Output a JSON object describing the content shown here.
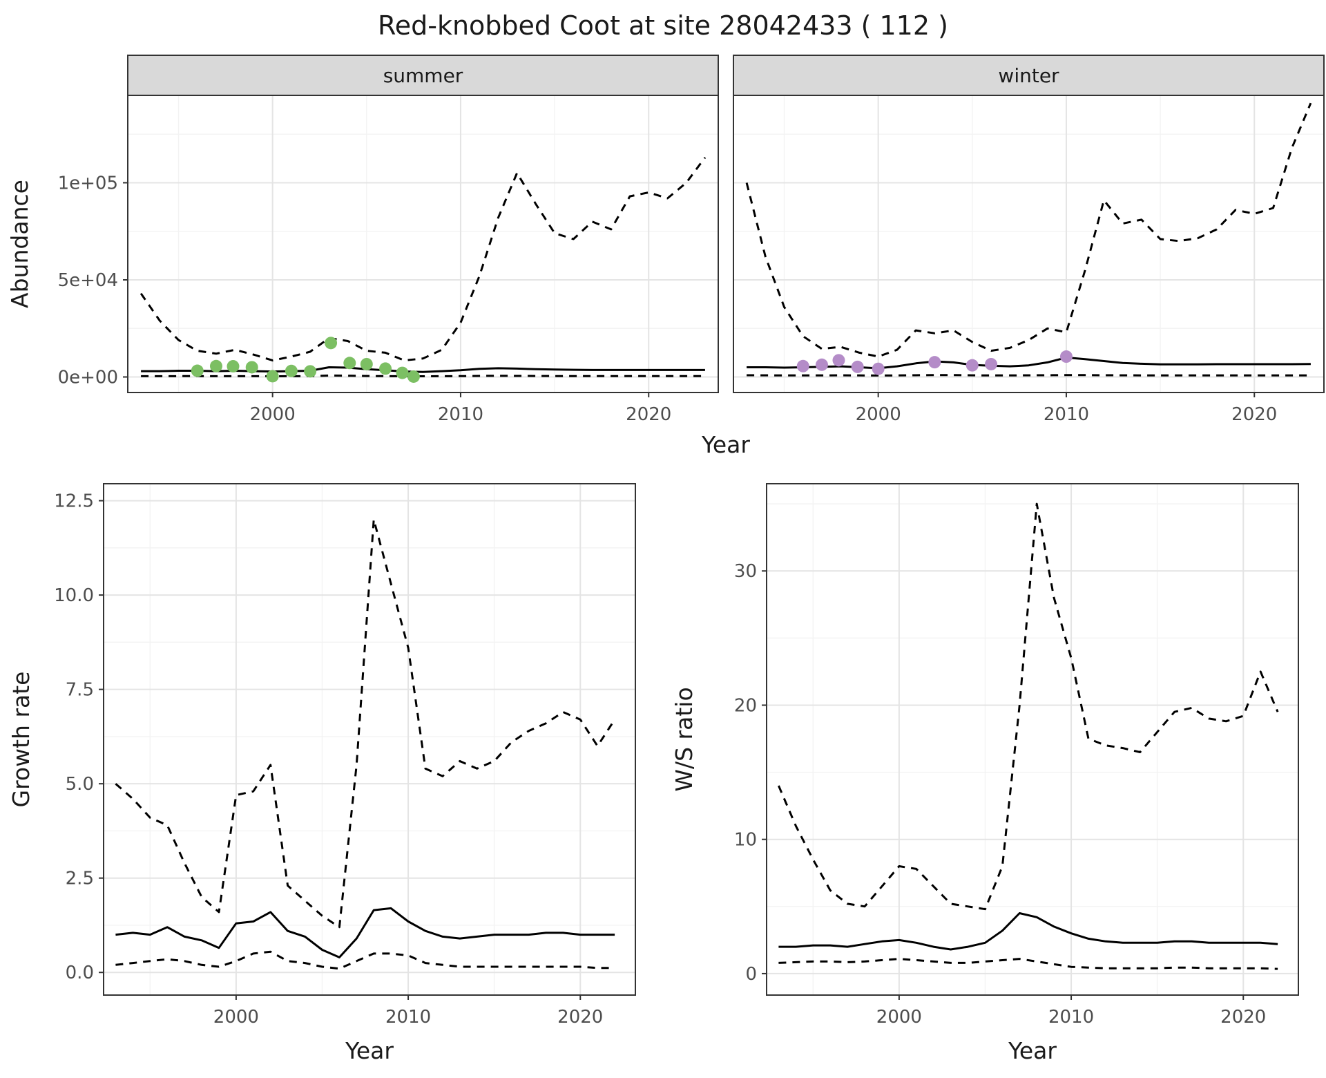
{
  "title": "Red-knobbed Coot at site 28042433 ( 112 )",
  "colors": {
    "summer_point": "#7CBF63",
    "winter_point": "#B48CC8",
    "line": "#000000",
    "grid_major": "#E4E4E4",
    "grid_minor": "#F3F3F3",
    "strip_bg": "#D9D9D9",
    "panel_border": "#333333",
    "tick_text": "#4D4D4D"
  },
  "chart_data": [
    {
      "id": "abundance-summer",
      "type": "line",
      "facet": "summer",
      "xlabel": "Year",
      "ylabel": "Abundance",
      "xlim": [
        1992.3,
        2023.7
      ],
      "ylim": [
        -8000,
        145000
      ],
      "xticks": [
        2000,
        2010,
        2020
      ],
      "yticks": [
        {
          "v": 0,
          "label": "0e+00"
        },
        {
          "v": 50000,
          "label": "5e+04"
        },
        {
          "v": 100000,
          "label": "1e+05"
        }
      ],
      "x": [
        1993,
        1994,
        1995,
        1996,
        1997,
        1998,
        1999,
        2000,
        2001,
        2002,
        2003,
        2004,
        2005,
        2006,
        2007,
        2008,
        2009,
        2010,
        2011,
        2012,
        2013,
        2014,
        2015,
        2016,
        2017,
        2018,
        2019,
        2020,
        2021,
        2022,
        2023
      ],
      "series": [
        {
          "name": "upper-ci",
          "style": "dashed",
          "values": [
            43000,
            29000,
            19000,
            13500,
            12000,
            14000,
            11500,
            8500,
            10500,
            13000,
            20000,
            18500,
            13500,
            12500,
            8500,
            9500,
            14000,
            28000,
            52000,
            82000,
            105000,
            89000,
            74000,
            71000,
            80000,
            76000,
            93000,
            95000,
            92000,
            100000,
            113000
          ]
        },
        {
          "name": "median",
          "style": "solid",
          "values": [
            3000,
            3000,
            3200,
            3200,
            3000,
            3200,
            3000,
            2800,
            3000,
            3200,
            5000,
            4800,
            4000,
            3500,
            2800,
            2600,
            3000,
            3500,
            4200,
            4500,
            4300,
            4000,
            3800,
            3700,
            3600,
            3600,
            3600,
            3600,
            3600,
            3600,
            3600
          ]
        },
        {
          "name": "lower-ci",
          "style": "dashed",
          "values": [
            400,
            400,
            450,
            450,
            400,
            450,
            400,
            350,
            400,
            450,
            700,
            650,
            500,
            450,
            350,
            350,
            400,
            450,
            550,
            600,
            550,
            500,
            480,
            470,
            460,
            460,
            460,
            460,
            460,
            460,
            460
          ]
        }
      ],
      "points": {
        "name": "observed-counts-summer",
        "color_key": "summer_point",
        "x": [
          1996,
          1997,
          1997.9,
          1998.9,
          2000,
          2001,
          2002,
          2003.1,
          2004.1,
          2005,
          2006,
          2006.9,
          2007.5
        ],
        "y": [
          3200,
          5600,
          5500,
          5000,
          400,
          3100,
          2900,
          17500,
          7200,
          6600,
          4300,
          2100,
          200
        ]
      }
    },
    {
      "id": "abundance-winter",
      "type": "line",
      "facet": "winter",
      "xlabel": "Year",
      "ylabel": "Abundance",
      "xlim": [
        1992.3,
        2023.7
      ],
      "ylim": [
        -8000,
        145000
      ],
      "xticks": [
        2000,
        2010,
        2020
      ],
      "yticks": [
        {
          "v": 0,
          "label": "0e+00"
        },
        {
          "v": 50000,
          "label": "5e+04"
        },
        {
          "v": 100000,
          "label": "1e+05"
        }
      ],
      "x": [
        1993,
        1994,
        1995,
        1996,
        1997,
        1998,
        1999,
        2000,
        2001,
        2002,
        2003,
        2004,
        2005,
        2006,
        2007,
        2008,
        2009,
        2010,
        2011,
        2012,
        2013,
        2014,
        2015,
        2016,
        2017,
        2018,
        2019,
        2020,
        2021,
        2022,
        2023
      ],
      "series": [
        {
          "name": "upper-ci",
          "style": "dashed",
          "values": [
            100000,
            62000,
            36000,
            21000,
            14500,
            15500,
            12500,
            10500,
            14000,
            24000,
            22500,
            24000,
            18000,
            13500,
            15000,
            19000,
            25000,
            23000,
            55000,
            91000,
            79000,
            81000,
            71000,
            70000,
            71500,
            76000,
            86000,
            84000,
            87000,
            118000,
            141000
          ]
        },
        {
          "name": "median",
          "style": "solid",
          "values": [
            5000,
            5000,
            4800,
            5000,
            5200,
            5500,
            5000,
            4500,
            5500,
            7000,
            8000,
            7500,
            6200,
            5800,
            5500,
            6000,
            7500,
            10000,
            9200,
            8200,
            7200,
            6800,
            6500,
            6500,
            6500,
            6600,
            6600,
            6600,
            6600,
            6600,
            6700
          ]
        },
        {
          "name": "lower-ci",
          "style": "dashed",
          "values": [
            900,
            850,
            800,
            800,
            800,
            850,
            800,
            750,
            800,
            900,
            1000,
            950,
            850,
            800,
            800,
            850,
            900,
            1000,
            950,
            900,
            850,
            820,
            800,
            800,
            800,
            800,
            800,
            800,
            800,
            800,
            800
          ]
        }
      ],
      "points": {
        "name": "observed-counts-winter",
        "color_key": "winter_point",
        "x": [
          1996,
          1997,
          1997.9,
          1998.9,
          2000,
          2003,
          2005,
          2006,
          2010
        ],
        "y": [
          5600,
          6300,
          8600,
          5200,
          4200,
          7600,
          6000,
          6600,
          10500
        ]
      }
    },
    {
      "id": "growth-rate",
      "type": "line",
      "facet": null,
      "xlabel": "Year",
      "ylabel": "Growth rate",
      "xlim": [
        1992.3,
        2023.2
      ],
      "ylim": [
        -0.6,
        12.95
      ],
      "xticks": [
        2000,
        2010,
        2020
      ],
      "yticks": [
        {
          "v": 0,
          "label": "0.0"
        },
        {
          "v": 2.5,
          "label": "2.5"
        },
        {
          "v": 5,
          "label": "5.0"
        },
        {
          "v": 7.5,
          "label": "7.5"
        },
        {
          "v": 10,
          "label": "10.0"
        },
        {
          "v": 12.5,
          "label": "12.5"
        }
      ],
      "x": [
        1993,
        1994,
        1995,
        1996,
        1997,
        1998,
        1999,
        2000,
        2001,
        2002,
        2003,
        2004,
        2005,
        2006,
        2007,
        2008,
        2009,
        2010,
        2011,
        2012,
        2013,
        2014,
        2015,
        2016,
        2017,
        2018,
        2019,
        2020,
        2021,
        2022
      ],
      "series": [
        {
          "name": "upper-ci",
          "style": "dashed",
          "values": [
            5.0,
            4.6,
            4.1,
            3.9,
            2.9,
            2.0,
            1.6,
            4.7,
            4.8,
            5.5,
            2.3,
            1.9,
            1.5,
            1.2,
            5.5,
            12.0,
            10.3,
            8.6,
            5.4,
            5.2,
            5.6,
            5.4,
            5.6,
            6.1,
            6.4,
            6.6,
            6.9,
            6.7,
            6.0,
            6.7
          ]
        },
        {
          "name": "median",
          "style": "solid",
          "values": [
            1.0,
            1.05,
            1.0,
            1.2,
            0.95,
            0.85,
            0.65,
            1.3,
            1.35,
            1.6,
            1.1,
            0.95,
            0.6,
            0.4,
            0.9,
            1.65,
            1.7,
            1.35,
            1.1,
            0.95,
            0.9,
            0.95,
            1.0,
            1.0,
            1.0,
            1.05,
            1.05,
            1.0,
            1.0,
            1.0
          ]
        },
        {
          "name": "lower-ci",
          "style": "dashed",
          "values": [
            0.2,
            0.25,
            0.3,
            0.35,
            0.3,
            0.2,
            0.15,
            0.3,
            0.5,
            0.55,
            0.3,
            0.25,
            0.15,
            0.1,
            0.3,
            0.5,
            0.5,
            0.45,
            0.25,
            0.2,
            0.15,
            0.15,
            0.15,
            0.15,
            0.15,
            0.15,
            0.15,
            0.15,
            0.12,
            0.12
          ]
        }
      ],
      "points": null
    },
    {
      "id": "ws-ratio",
      "type": "line",
      "facet": null,
      "xlabel": "Year",
      "ylabel": "W/S ratio",
      "xlim": [
        1992.3,
        2023.2
      ],
      "ylim": [
        -1.6,
        36.5
      ],
      "xticks": [
        2000,
        2010,
        2020
      ],
      "yticks": [
        {
          "v": 0,
          "label": "0"
        },
        {
          "v": 10,
          "label": "10"
        },
        {
          "v": 20,
          "label": "20"
        },
        {
          "v": 30,
          "label": "30"
        }
      ],
      "x": [
        1993,
        1994,
        1995,
        1996,
        1997,
        1998,
        1999,
        2000,
        2001,
        2002,
        2003,
        2004,
        2005,
        2006,
        2007,
        2008,
        2009,
        2010,
        2011,
        2012,
        2013,
        2014,
        2015,
        2016,
        2017,
        2018,
        2019,
        2020,
        2021,
        2022
      ],
      "series": [
        {
          "name": "upper-ci",
          "style": "dashed",
          "values": [
            14.0,
            11.0,
            8.5,
            6.2,
            5.2,
            5.0,
            6.5,
            8.0,
            7.8,
            6.5,
            5.2,
            5.0,
            4.8,
            8.0,
            20.0,
            35.0,
            28.0,
            23.5,
            17.5,
            17.0,
            16.8,
            16.5,
            18.0,
            19.5,
            19.8,
            19.0,
            18.8,
            19.2,
            22.5,
            19.5
          ]
        },
        {
          "name": "median",
          "style": "solid",
          "values": [
            2.0,
            2.0,
            2.1,
            2.1,
            2.0,
            2.2,
            2.4,
            2.5,
            2.3,
            2.0,
            1.8,
            2.0,
            2.3,
            3.2,
            4.5,
            4.2,
            3.5,
            3.0,
            2.6,
            2.4,
            2.3,
            2.3,
            2.3,
            2.4,
            2.4,
            2.3,
            2.3,
            2.3,
            2.3,
            2.2
          ]
        },
        {
          "name": "lower-ci",
          "style": "dashed",
          "values": [
            0.8,
            0.85,
            0.9,
            0.9,
            0.85,
            0.9,
            1.0,
            1.1,
            1.0,
            0.9,
            0.8,
            0.8,
            0.9,
            1.0,
            1.1,
            0.9,
            0.7,
            0.5,
            0.45,
            0.4,
            0.4,
            0.4,
            0.4,
            0.45,
            0.45,
            0.4,
            0.4,
            0.4,
            0.4,
            0.35
          ]
        }
      ],
      "points": null
    }
  ]
}
